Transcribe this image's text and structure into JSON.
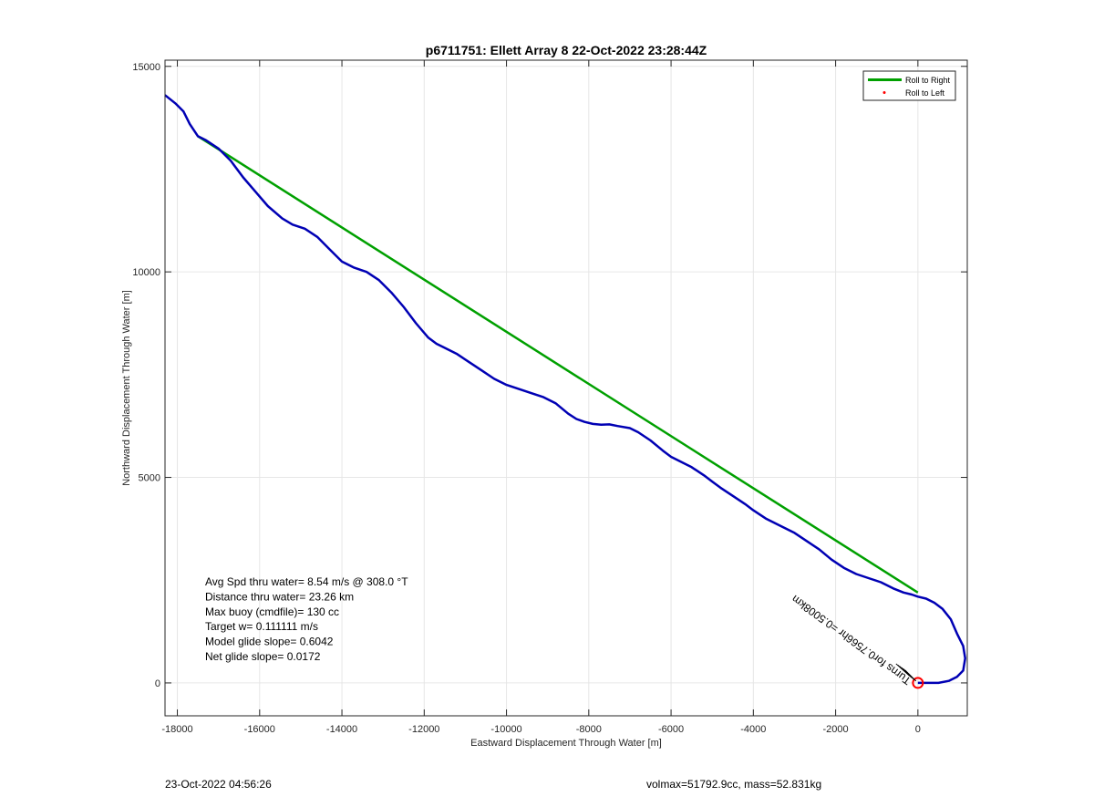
{
  "footer": {
    "timestamp": "23-Oct-2022 04:56:26",
    "vol_mass": "volmax=51792.9cc, mass=52.831kg"
  },
  "chart_data": {
    "type": "line",
    "title": "p6711751: Ellett Array 8 22-Oct-2022 23:28:44Z",
    "xlabel": "Eastward Displacement Through Water [m]",
    "ylabel": "Northward Displacement Through Water [m]",
    "xlim": [
      -18300,
      1200
    ],
    "ylim": [
      -800,
      15150
    ],
    "xticks": [
      -18000,
      -16000,
      -14000,
      -12000,
      -10000,
      -8000,
      -6000,
      -4000,
      -2000,
      0
    ],
    "yticks": [
      0,
      5000,
      10000,
      15000
    ],
    "grid": true,
    "legend": {
      "position": "top-right",
      "entries": [
        {
          "label": "Roll to Right",
          "color": "#00a000",
          "marker": "line"
        },
        {
          "label": "Roll to Left",
          "color": "#ff0000",
          "marker": "dot"
        }
      ]
    },
    "series": [
      {
        "color": "#00a000",
        "x": [
          -17500,
          0
        ],
        "y": [
          13300,
          2200
        ]
      },
      {
        "color": "#0000b4",
        "x": [
          -18300,
          -18050,
          -17850,
          -17700,
          -17500,
          -17300,
          -17000,
          -16700,
          -16400,
          -16100,
          -15800,
          -15450,
          -15200,
          -14900,
          -14600,
          -14300,
          -14000,
          -13700,
          -13400,
          -13100,
          -12800,
          -12500,
          -12200,
          -11900,
          -11700,
          -11500,
          -11200,
          -10900,
          -10600,
          -10300,
          -10000,
          -9700,
          -9400,
          -9100,
          -8800,
          -8500,
          -8300,
          -8100,
          -7900,
          -7700,
          -7500,
          -7300,
          -7000,
          -6800,
          -6500,
          -6200,
          -6000,
          -5800,
          -5500,
          -5200,
          -5000,
          -4800,
          -4500,
          -4200,
          -4000,
          -3700,
          -3400,
          -3000,
          -2700,
          -2400,
          -2100,
          -1800,
          -1500,
          -1200,
          -900,
          -600,
          -350,
          -150,
          0,
          200,
          400,
          600,
          800,
          950,
          1100,
          1150,
          1100,
          950,
          750,
          500,
          300,
          150,
          60,
          0
        ],
        "y": [
          14300,
          14100,
          13900,
          13600,
          13300,
          13200,
          13000,
          12700,
          12300,
          11950,
          11600,
          11300,
          11150,
          11050,
          10850,
          10550,
          10250,
          10100,
          10000,
          9800,
          9500,
          9150,
          8750,
          8400,
          8250,
          8150,
          8000,
          7800,
          7600,
          7400,
          7250,
          7150,
          7050,
          6950,
          6800,
          6550,
          6420,
          6350,
          6300,
          6280,
          6290,
          6250,
          6200,
          6100,
          5900,
          5650,
          5500,
          5400,
          5250,
          5050,
          4900,
          4750,
          4550,
          4350,
          4200,
          4000,
          3850,
          3650,
          3450,
          3250,
          3000,
          2800,
          2650,
          2550,
          2450,
          2300,
          2200,
          2150,
          2100,
          2050,
          1950,
          1800,
          1550,
          1200,
          900,
          600,
          300,
          150,
          50,
          0,
          0,
          0,
          0,
          0
        ]
      }
    ],
    "markers": [
      {
        "type": "circle",
        "color": "#ff0000",
        "x": 0,
        "y": 0
      }
    ],
    "text_annotations": [
      "Avg Spd thru water=  8.54 m/s @ 308.0 °T",
      "Distance thru water= 23.26 km",
      "Max buoy (cmdfile)= 130 cc",
      "Target w= 0.111111 m/s",
      "Model glide slope= 0.6042",
      "Net glide slope= 0.0172"
    ],
    "rotated_annotation": "Turns for0.7566hr =0.5008km"
  }
}
